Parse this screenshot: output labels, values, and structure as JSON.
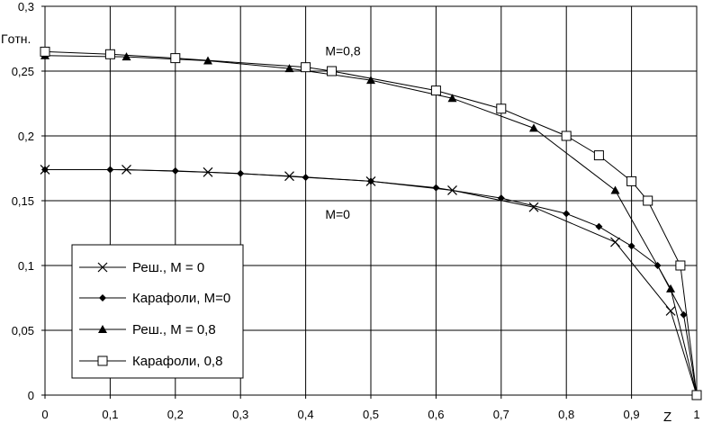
{
  "chart_data": {
    "type": "line",
    "title": "",
    "xlabel": "Z",
    "ylabel": "Гoтн.",
    "xlim": [
      0,
      1
    ],
    "ylim": [
      0,
      0.3
    ],
    "grid": true,
    "x_ticks": [
      0,
      0.1,
      0.2,
      0.3,
      0.4,
      0.5,
      0.6,
      0.7,
      0.8,
      0.9,
      1
    ],
    "x_tick_labels": [
      "0",
      "0,1",
      "0,2",
      "0,3",
      "0,4",
      "0,5",
      "0,6",
      "0,7",
      "0,8",
      "0,9",
      "1"
    ],
    "y_ticks": [
      0,
      0.05,
      0.1,
      0.15,
      0.2,
      0.25,
      0.3
    ],
    "y_tick_labels": [
      "0",
      "0,05",
      "0,1",
      "0,15",
      "0,2",
      "0,25",
      "0,3"
    ],
    "annotations": [
      {
        "text": "M=0,8",
        "x": 0.43,
        "y": 0.262
      },
      {
        "text": "M=0",
        "x": 0.43,
        "y": 0.136
      }
    ],
    "legend_position": "bottom-left",
    "series": [
      {
        "name": "Реш., М = 0",
        "marker": "x",
        "x": [
          0,
          0.125,
          0.25,
          0.375,
          0.5,
          0.625,
          0.75,
          0.875,
          0.96,
          1
        ],
        "y": [
          0.174,
          0.174,
          0.172,
          0.169,
          0.165,
          0.158,
          0.145,
          0.118,
          0.065,
          0
        ]
      },
      {
        "name": "Карафоли, М=0",
        "marker": "diamond",
        "x": [
          0,
          0.1,
          0.2,
          0.3,
          0.4,
          0.5,
          0.6,
          0.7,
          0.8,
          0.85,
          0.9,
          0.94,
          0.98,
          1
        ],
        "y": [
          0.174,
          0.174,
          0.173,
          0.171,
          0.168,
          0.165,
          0.16,
          0.152,
          0.14,
          0.13,
          0.115,
          0.1,
          0.062,
          0
        ]
      },
      {
        "name": "Реш., М = 0,8",
        "marker": "triangle",
        "x": [
          0,
          0.125,
          0.25,
          0.375,
          0.5,
          0.625,
          0.75,
          0.875,
          0.96,
          1
        ],
        "y": [
          0.262,
          0.261,
          0.258,
          0.252,
          0.243,
          0.229,
          0.206,
          0.158,
          0.082,
          0
        ]
      },
      {
        "name": "Карафоли, 0,8",
        "marker": "square",
        "x": [
          0,
          0.1,
          0.2,
          0.4,
          0.44,
          0.6,
          0.7,
          0.8,
          0.85,
          0.9,
          0.925,
          0.975,
          1
        ],
        "y": [
          0.265,
          0.263,
          0.26,
          0.253,
          0.25,
          0.235,
          0.221,
          0.2,
          0.185,
          0.165,
          0.15,
          0.1,
          0
        ]
      }
    ]
  }
}
